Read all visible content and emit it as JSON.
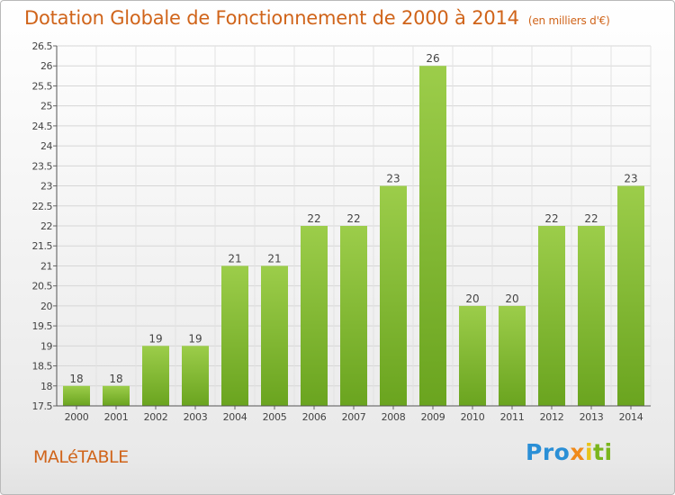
{
  "title": "Dotation Globale de Fonctionnement de 2000 à 2014",
  "unit_note": "(en milliers d'€)",
  "commune": "MALéTABLE",
  "logo_text": "Proxiti",
  "colors": {
    "bar": "#7fbf2e",
    "title": "#d0641a"
  },
  "chart_data": {
    "type": "bar",
    "title": "Dotation Globale de Fonctionnement de 2000 à 2014",
    "categories": [
      "2000",
      "2001",
      "2002",
      "2003",
      "2004",
      "2005",
      "2006",
      "2007",
      "2008",
      "2009",
      "2010",
      "2011",
      "2012",
      "2013",
      "2014"
    ],
    "values": [
      18,
      18,
      19,
      19,
      21,
      21,
      22,
      22,
      23,
      26,
      20,
      20,
      22,
      22,
      23
    ],
    "ylim": [
      17.5,
      26.5
    ],
    "yticks": [
      "17.5",
      "18",
      "18.5",
      "19",
      "19.5",
      "20",
      "20.5",
      "21",
      "21.5",
      "22",
      "22.5",
      "23",
      "23.5",
      "24",
      "24.5",
      "25",
      "25.5",
      "26",
      "26.5"
    ],
    "grid": true,
    "data_labels": true
  }
}
